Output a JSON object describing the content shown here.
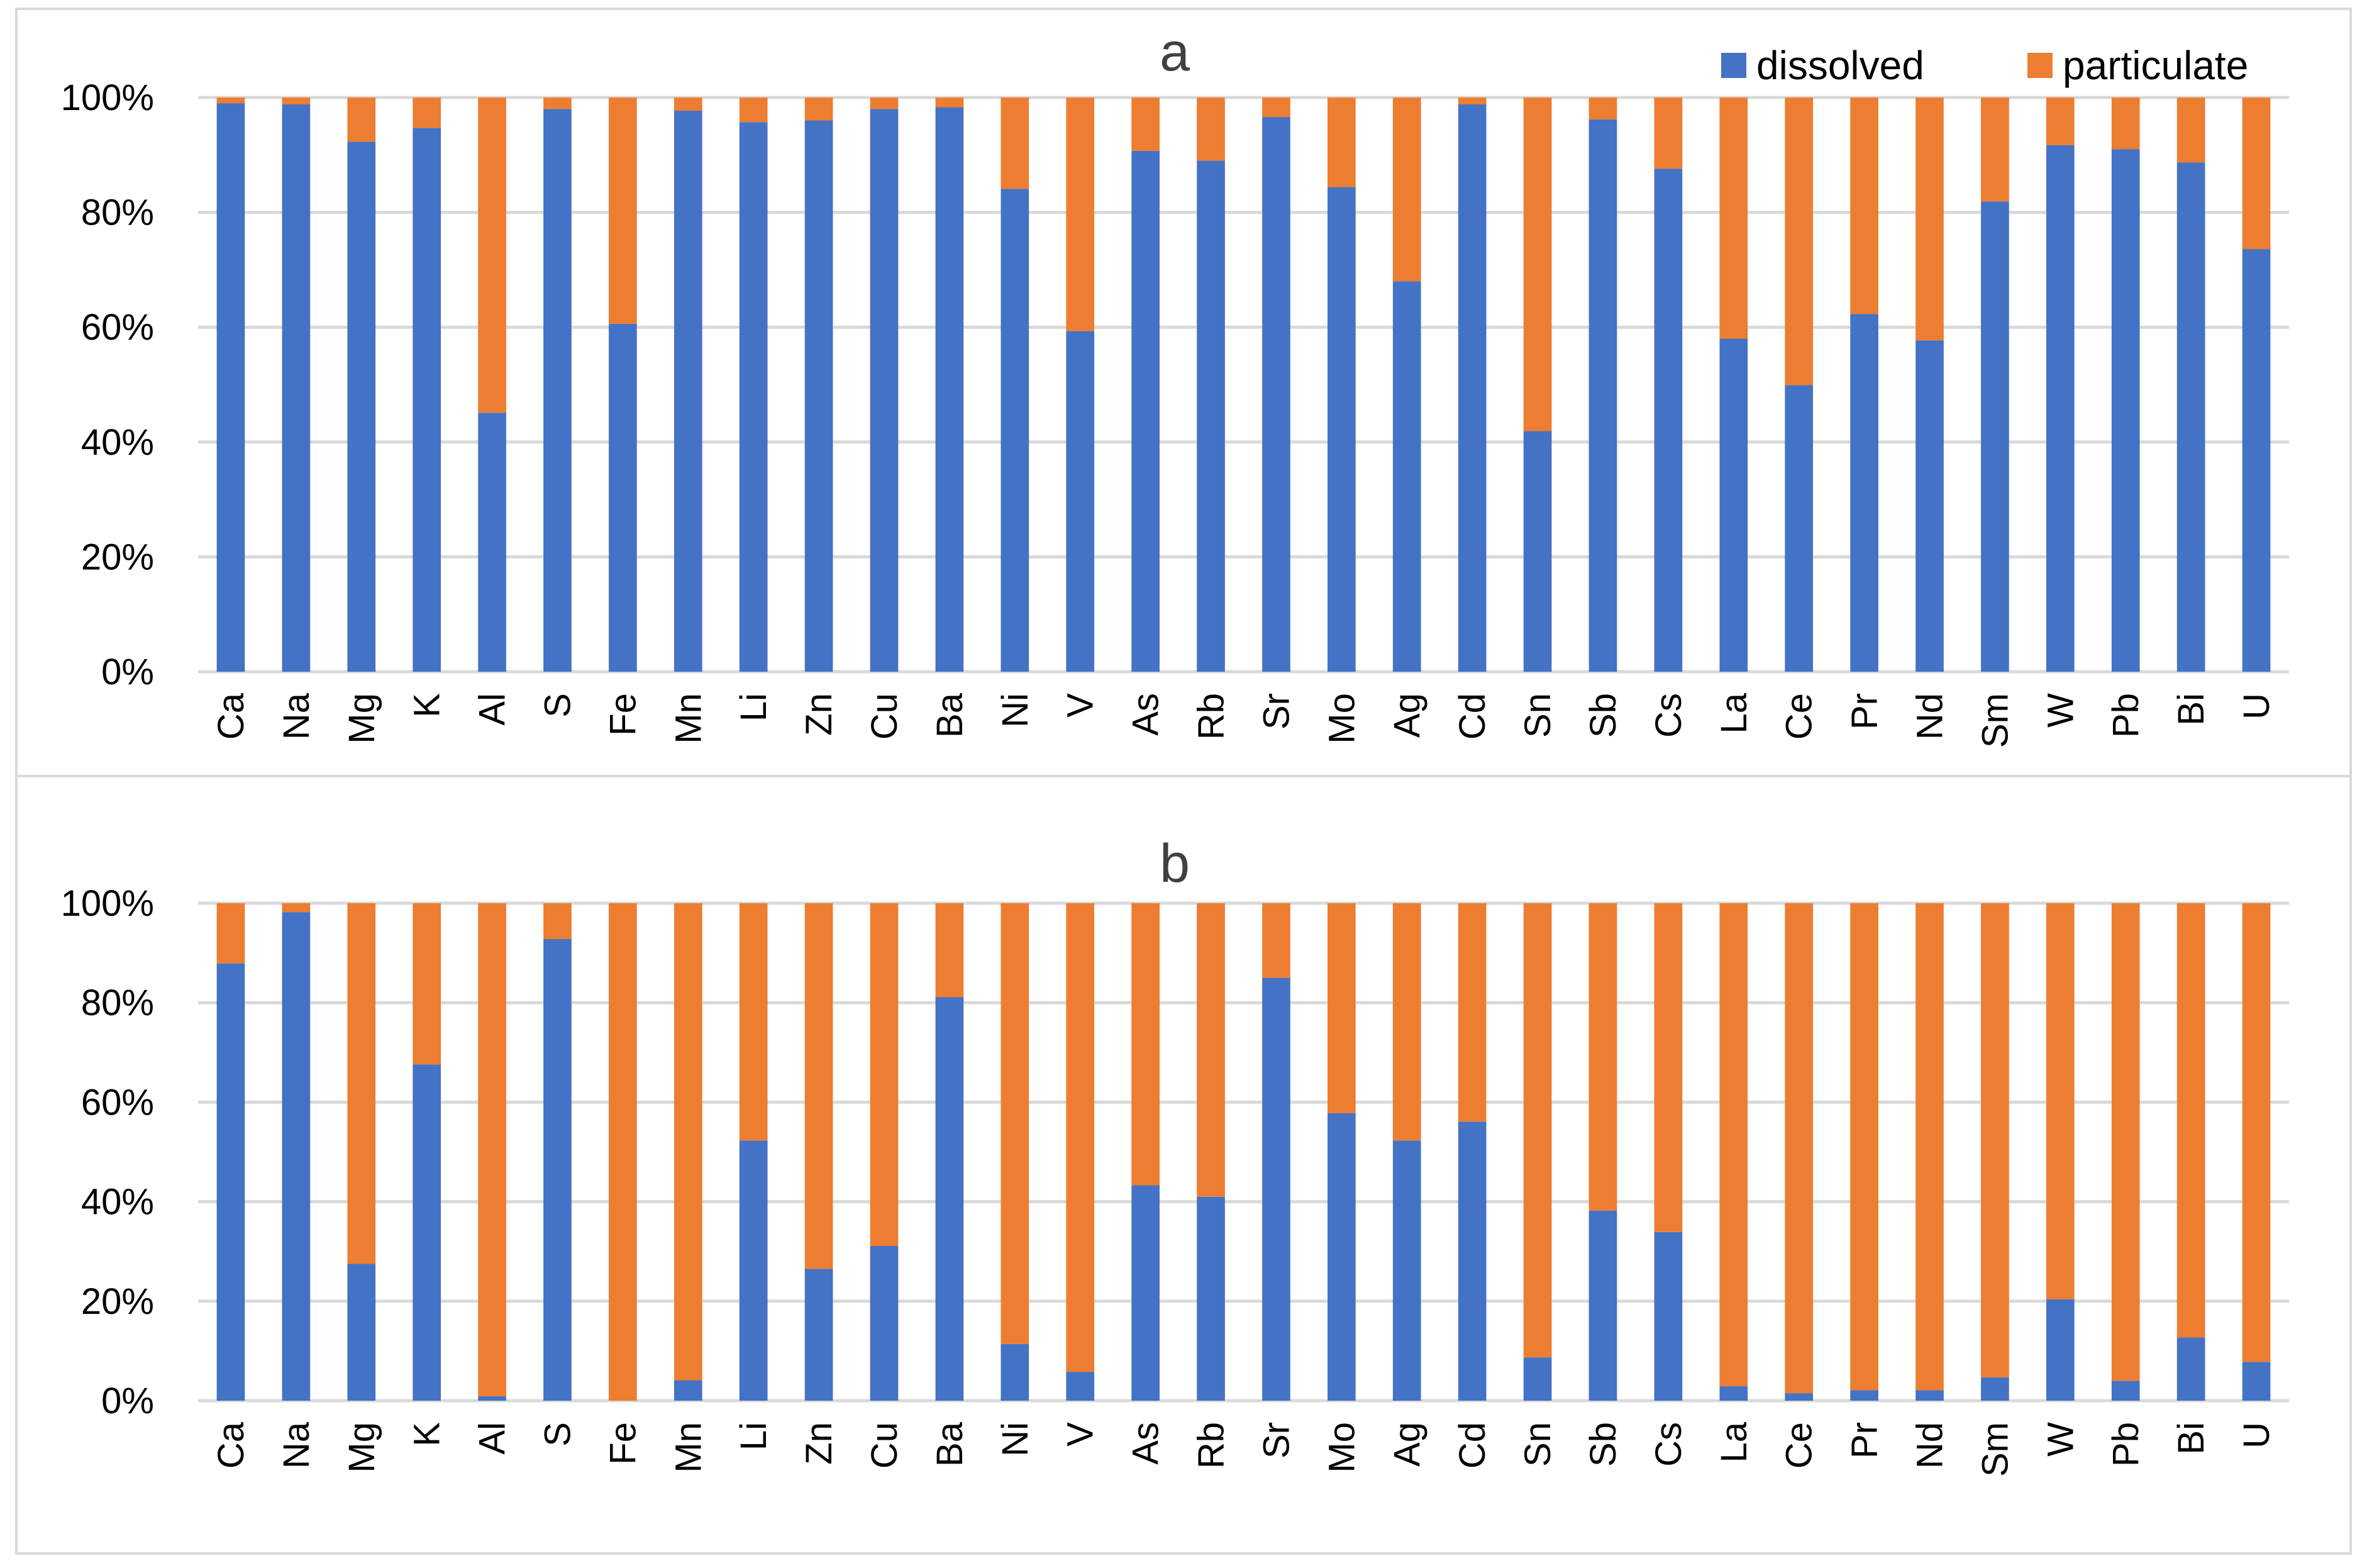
{
  "legend": {
    "dissolved_label": "dissolved",
    "particulate_label": "particulate",
    "dissolved_color": "#4472C4",
    "particulate_color": "#ED7D31"
  },
  "chart_data": [
    {
      "type": "bar",
      "stacked": true,
      "percent": true,
      "title": "a",
      "legend": "top-right",
      "ylim": [
        0,
        100
      ],
      "yticks": [
        "0%",
        "20%",
        "40%",
        "60%",
        "80%",
        "100%"
      ],
      "categories": [
        "Ca",
        "Na",
        "Mg",
        "K",
        "Al",
        "S",
        "Fe",
        "Mn",
        "Li",
        "Zn",
        "Cu",
        "Ba",
        "Ni",
        "V",
        "As",
        "Rb",
        "Sr",
        "Mo",
        "Ag",
        "Cd",
        "Sn",
        "Sb",
        "Cs",
        "La",
        "Ce",
        "Pr",
        "Nd",
        "Sm",
        "W",
        "Pb",
        "Bi",
        "U"
      ],
      "series": [
        {
          "name": "dissolved",
          "values": [
            99,
            98.8,
            92.3,
            94.7,
            45.1,
            98,
            60.6,
            97.7,
            95.7,
            96,
            98,
            98.3,
            84.1,
            59.3,
            90.7,
            89,
            96.6,
            84.4,
            68,
            98.8,
            41.9,
            96.2,
            87.6,
            58,
            49.9,
            62.3,
            57.7,
            81.9,
            91.7,
            91,
            88.7,
            73.6
          ]
        },
        {
          "name": "particulate",
          "values": [
            1,
            1.2,
            7.7,
            5.3,
            54.9,
            2,
            39.4,
            2.3,
            4.3,
            4,
            2,
            1.7,
            15.9,
            40.7,
            9.3,
            11,
            3.4,
            15.6,
            32,
            1.2,
            58.1,
            3.8,
            12.4,
            42,
            50.1,
            37.7,
            42.3,
            18.1,
            8.3,
            9,
            11.3,
            26.4
          ]
        }
      ]
    },
    {
      "type": "bar",
      "stacked": true,
      "percent": true,
      "title": "b",
      "ylim": [
        0,
        100
      ],
      "yticks": [
        "0%",
        "20%",
        "40%",
        "60%",
        "80%",
        "100%"
      ],
      "categories": [
        "Ca",
        "Na",
        "Mg",
        "K",
        "Al",
        "S",
        "Fe",
        "Mn",
        "Li",
        "Zn",
        "Cu",
        "Ba",
        "Ni",
        "V",
        "As",
        "Rb",
        "Sr",
        "Mo",
        "Ag",
        "Cd",
        "Sn",
        "Sb",
        "Cs",
        "La",
        "Ce",
        "Pr",
        "Nd",
        "Sm",
        "W",
        "Pb",
        "Bi",
        "U"
      ],
      "series": [
        {
          "name": "dissolved",
          "values": [
            87.9,
            98.2,
            27.5,
            67.6,
            0.9,
            92.8,
            0,
            4.1,
            52.3,
            26.5,
            31.1,
            81.1,
            11.4,
            5.8,
            43.3,
            41,
            85,
            57.8,
            52.3,
            56.1,
            8.7,
            38.2,
            33.9,
            2.9,
            1.5,
            2.1,
            2.1,
            4.7,
            20.4,
            4,
            12.7,
            7.8
          ]
        },
        {
          "name": "particulate",
          "values": [
            12.1,
            1.8,
            72.5,
            32.4,
            99.1,
            7.2,
            100,
            95.9,
            47.7,
            73.5,
            68.9,
            18.9,
            88.6,
            94.2,
            56.7,
            59,
            15,
            42.2,
            47.7,
            43.9,
            91.3,
            61.8,
            66.1,
            97.1,
            98.5,
            97.9,
            97.9,
            95.3,
            79.6,
            96,
            87.3,
            92.2
          ]
        }
      ]
    }
  ]
}
